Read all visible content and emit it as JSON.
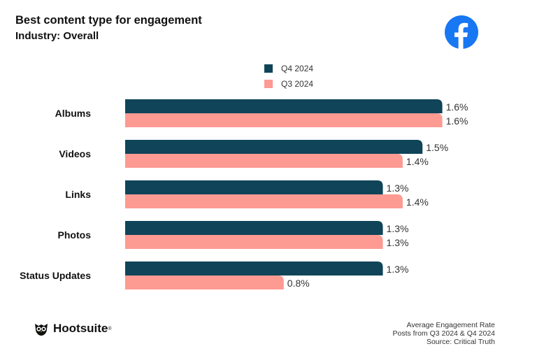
{
  "header": {
    "title": "Best content type for engagement",
    "subtitle": "Industry: Overall"
  },
  "icons": {
    "platform": "facebook-logo-icon",
    "brand": "hootsuite-owl-icon"
  },
  "colors": {
    "q4": "#0f4459",
    "q3": "#fd9a92",
    "facebook": "#1877f2"
  },
  "footer": {
    "brand": "Hootsuite",
    "note_lines": [
      "Average Engagement Rate",
      "Posts from Q3 2024 & Q4 2024",
      "Source: Critical Truth"
    ]
  },
  "chart_data": {
    "type": "bar",
    "orientation": "horizontal",
    "categories": [
      "Albums",
      "Videos",
      "Links",
      "Photos",
      "Status Updates"
    ],
    "series": [
      {
        "name": "Q4 2024",
        "values": [
          1.6,
          1.5,
          1.3,
          1.3,
          1.3
        ],
        "labels": [
          "1.6%",
          "1.5%",
          "1.3%",
          "1.3%",
          "1.3%"
        ]
      },
      {
        "name": "Q3 2024",
        "values": [
          1.6,
          1.4,
          1.4,
          1.3,
          0.8
        ],
        "labels": [
          "1.6%",
          "1.4%",
          "1.4%",
          "1.3%",
          "0.8%"
        ]
      }
    ],
    "legend_position": "top-center",
    "grid": false
  }
}
